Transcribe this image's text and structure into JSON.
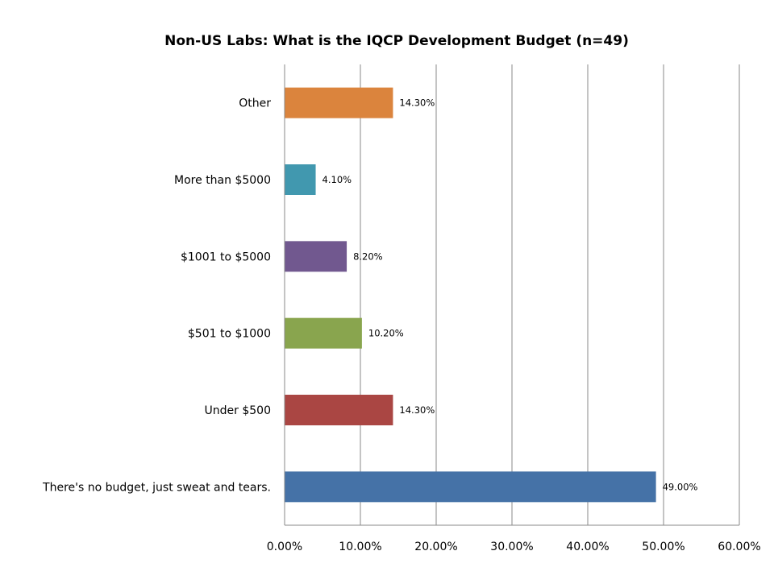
{
  "chart_data": {
    "type": "bar",
    "orientation": "horizontal",
    "title": "Non-US Labs: What is the IQCP Development Budget (n=49)",
    "categories": [
      "There's no budget, just sweat and tears.",
      "Under $500",
      "$501 to $1000",
      "$1001 to $5000",
      "More than $5000",
      "Other"
    ],
    "values": [
      49.0,
      14.3,
      10.2,
      8.2,
      4.1,
      14.3
    ],
    "data_labels": [
      "49.00%",
      "14.30%",
      "10.20%",
      "8.20%",
      "4.10%",
      "14.30%"
    ],
    "colors": [
      "#4572a7",
      "#aa4643",
      "#89a54e",
      "#71588f",
      "#4198af",
      "#db843d"
    ],
    "xlim": [
      0,
      60
    ],
    "x_ticks": [
      0,
      10,
      20,
      30,
      40,
      50,
      60
    ],
    "x_tick_labels": [
      "0.00%",
      "10.00%",
      "20.00%",
      "30.00%",
      "40.00%",
      "50.00%",
      "60.00%"
    ],
    "xlabel": "",
    "ylabel": "",
    "grid": "vertical",
    "legend": "none"
  }
}
